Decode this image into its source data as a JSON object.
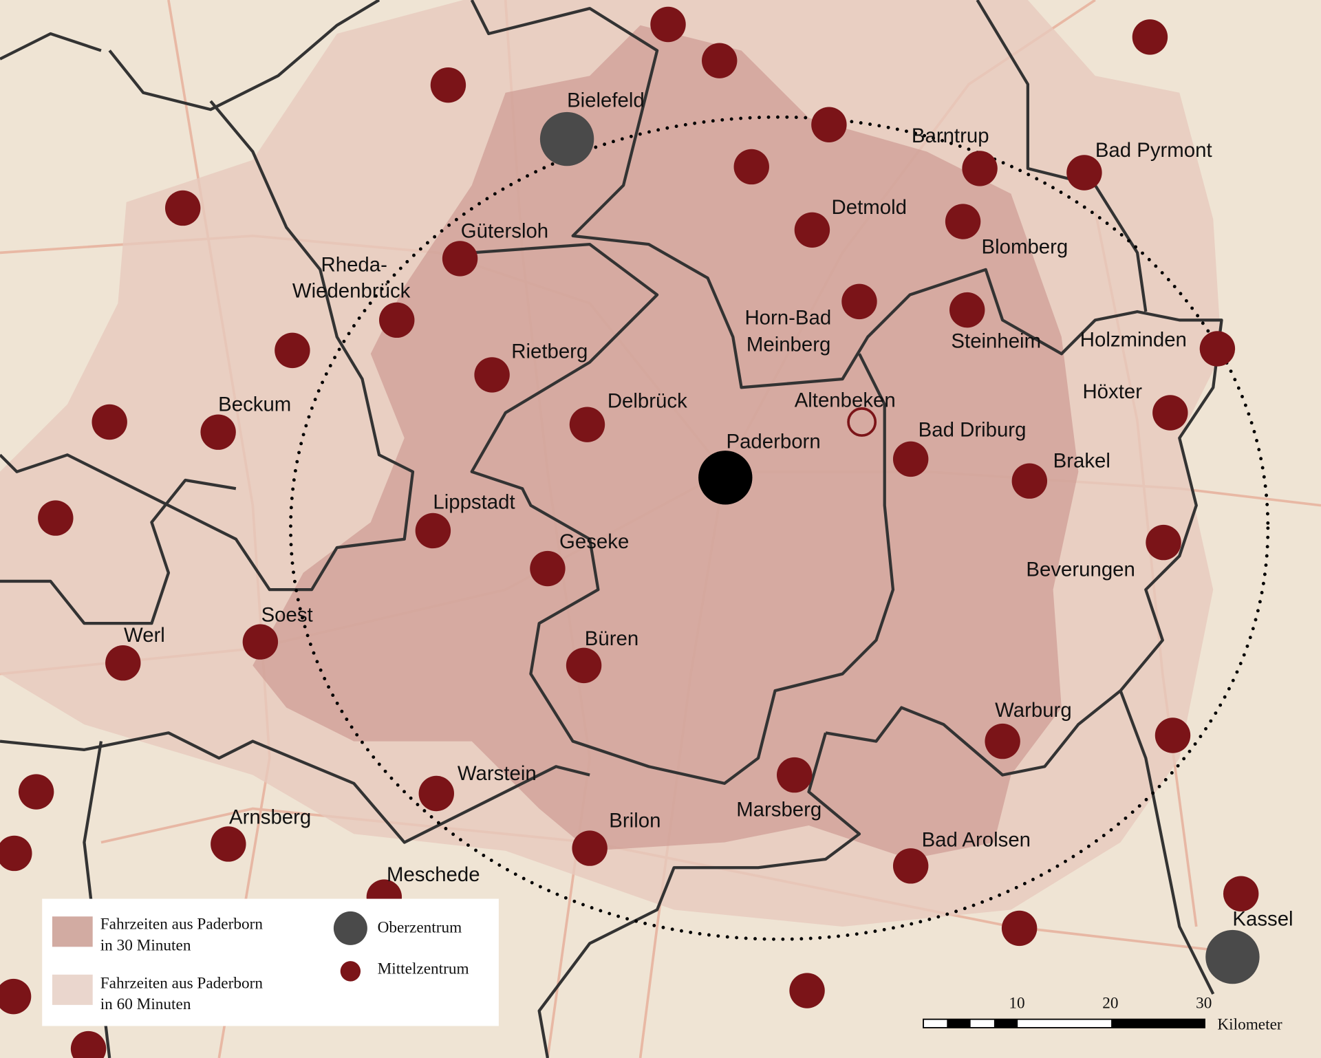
{
  "map": {
    "colors": {
      "background": "#efe4d4",
      "zone_60": "#e7c9bd",
      "zone_30": "#cf9e95",
      "mittelzentrum": "#7b1418",
      "oberzentrum": "#4a4a4a",
      "paderborn": "#000000"
    },
    "cities": [
      "Bielefeld",
      "Barntrup",
      "Bad Pyrmont",
      "Detmold",
      "Gütersloh",
      "Blomberg",
      "Rheda-",
      "Wiedenbrück",
      "Horn-Bad",
      "Meinberg",
      "Steinheim",
      "Holzminden",
      "Rietberg",
      "Höxter",
      "Beckum",
      "Delbrück",
      "Altenbeken",
      "Bad Driburg",
      "Paderborn",
      "Brakel",
      "Lippstadt",
      "Geseke",
      "Beverungen",
      "Soest",
      "Werl",
      "Büren",
      "Warburg",
      "Warstein",
      "Marsberg",
      "Brilon",
      "Arnsberg",
      "Bad Arolsen",
      "Meschede",
      "Kassel"
    ]
  },
  "legend": {
    "zone30_line1": "Fahrzeiten aus Paderborn",
    "zone30_line2": "in 30 Minuten",
    "zone60_line1": "Fahrzeiten aus Paderborn",
    "zone60_line2": "in 60 Minuten",
    "oberzentrum": "Oberzentrum",
    "mittelzentrum": "Mittelzentrum"
  },
  "scale_bar": {
    "ticks": [
      "10",
      "20",
      "30"
    ],
    "unit": "Kilometer"
  }
}
